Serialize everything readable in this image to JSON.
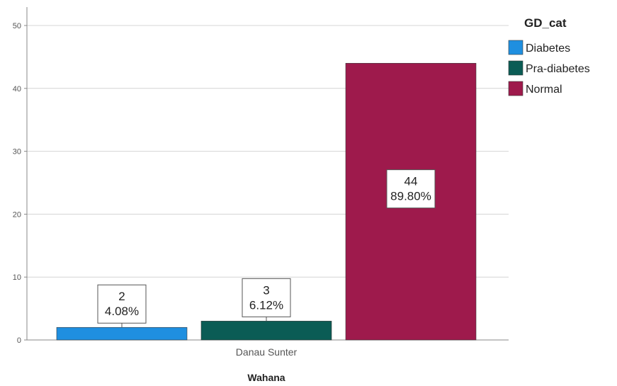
{
  "chart_data": {
    "type": "bar",
    "categories": [
      "Danau Sunter"
    ],
    "xlabel": "Wahana",
    "ylabel": "",
    "ylim": [
      0,
      50
    ],
    "yticks": [
      0,
      10,
      20,
      30,
      40,
      50
    ],
    "grid": true,
    "legend": {
      "title": "GD_cat",
      "position": "top-right"
    },
    "series": [
      {
        "name": "Diabetes",
        "values": [
          2
        ],
        "percent_label": "4.08%",
        "color": "#1f8fe0"
      },
      {
        "name": "Pra-diabetes",
        "values": [
          3
        ],
        "percent_label": "6.12%",
        "color": "#0b5c55"
      },
      {
        "name": "Normal",
        "values": [
          44
        ],
        "percent_label": "89.80%",
        "color": "#9e1a4c"
      }
    ]
  }
}
